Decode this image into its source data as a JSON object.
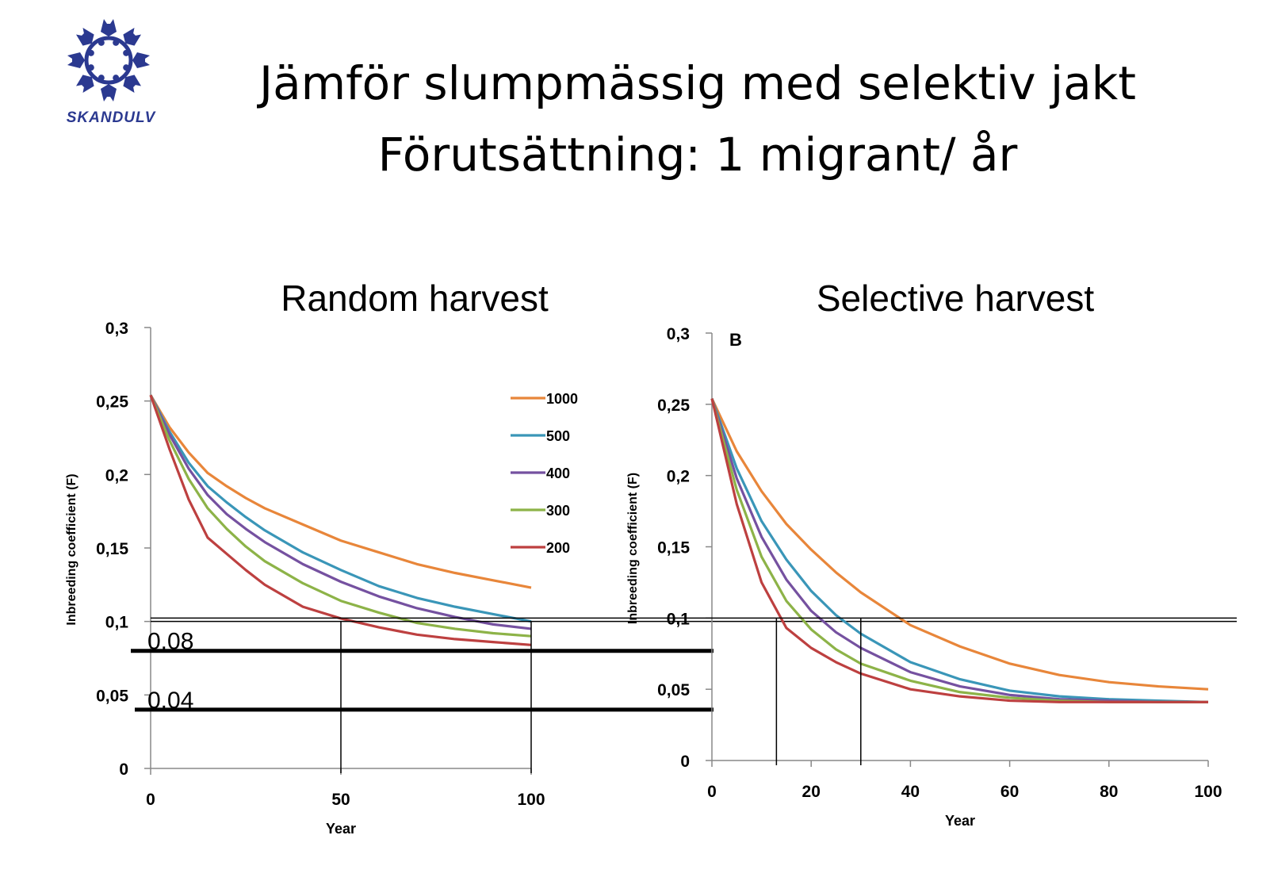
{
  "slide": {
    "title_line1": "Jämför slumpmässig med selektiv jakt",
    "title_line2": "Förutsättning: 1 migrant/ år",
    "logo_text": "SKANDULV",
    "logo_color": "#2b3990"
  },
  "chart_data": [
    {
      "type": "line",
      "title": "Random harvest",
      "xlabel": "Year",
      "ylabel": "Inbreeding coefficient (F)",
      "xlim": [
        0,
        100
      ],
      "ylim": [
        0,
        0.3
      ],
      "xticks": [
        0,
        50,
        100
      ],
      "xtick_labels": [
        "0",
        "50",
        "100"
      ],
      "yticks": [
        0,
        0.05,
        0.1,
        0.15,
        0.2,
        0.25,
        0.3
      ],
      "ytick_labels": [
        "0",
        "0,05",
        "0,1",
        "0,15",
        "0,2",
        "0,25",
        "0,3"
      ],
      "legend_position": "right",
      "x": [
        0,
        5,
        10,
        15,
        20,
        25,
        30,
        40,
        50,
        60,
        70,
        80,
        90,
        100
      ],
      "series": [
        {
          "name": "1000",
          "color": "#e8863a",
          "values": [
            0.254,
            0.232,
            0.215,
            0.201,
            0.192,
            0.184,
            0.177,
            0.166,
            0.155,
            0.147,
            0.139,
            0.133,
            0.128,
            0.123
          ]
        },
        {
          "name": "500",
          "color": "#3a96b8",
          "values": [
            0.254,
            0.229,
            0.208,
            0.192,
            0.181,
            0.171,
            0.162,
            0.147,
            0.135,
            0.124,
            0.116,
            0.11,
            0.105,
            0.1
          ]
        },
        {
          "name": "400",
          "color": "#7551a0",
          "values": [
            0.254,
            0.227,
            0.204,
            0.186,
            0.173,
            0.163,
            0.154,
            0.139,
            0.127,
            0.117,
            0.109,
            0.103,
            0.098,
            0.095
          ]
        },
        {
          "name": "300",
          "color": "#8db348",
          "values": [
            0.254,
            0.223,
            0.197,
            0.177,
            0.163,
            0.151,
            0.141,
            0.126,
            0.114,
            0.106,
            0.099,
            0.095,
            0.092,
            0.09
          ]
        },
        {
          "name": "200",
          "color": "#bd4040",
          "values": [
            0.254,
            0.217,
            0.183,
            0.157,
            0.146,
            0.135,
            0.125,
            0.11,
            0.102,
            0.096,
            0.091,
            0.088,
            0.086,
            0.084
          ]
        }
      ],
      "reference_lines": [
        {
          "value": 0.1,
          "style": "thin"
        },
        {
          "value": 0.08,
          "label": "0.08",
          "style": "thick"
        },
        {
          "value": 0.04,
          "label": "0.04",
          "style": "thick"
        }
      ],
      "vertical_markers": [
        50,
        100
      ]
    },
    {
      "type": "line",
      "title": "Selective harvest",
      "panel_label": "B",
      "xlabel": "Year",
      "ylabel": "Inbreeding coefficient (F)",
      "xlim": [
        0,
        100
      ],
      "ylim": [
        0,
        0.3
      ],
      "xticks": [
        0,
        20,
        40,
        60,
        80,
        100
      ],
      "xtick_labels": [
        "0",
        "20",
        "40",
        "60",
        "80",
        "100"
      ],
      "yticks": [
        0,
        0.05,
        0.1,
        0.15,
        0.2,
        0.25,
        0.3
      ],
      "ytick_labels": [
        "0",
        "0,05",
        "0,1",
        "0,15",
        "0,2",
        "0,25",
        "0,3"
      ],
      "x": [
        0,
        5,
        10,
        15,
        20,
        25,
        30,
        40,
        50,
        60,
        70,
        80,
        90,
        100
      ],
      "series": [
        {
          "name": "1000",
          "color": "#e8863a",
          "values": [
            0.254,
            0.217,
            0.189,
            0.166,
            0.148,
            0.132,
            0.118,
            0.095,
            0.08,
            0.068,
            0.06,
            0.055,
            0.052,
            0.05
          ]
        },
        {
          "name": "500",
          "color": "#3a96b8",
          "values": [
            0.254,
            0.205,
            0.168,
            0.141,
            0.119,
            0.102,
            0.089,
            0.069,
            0.057,
            0.049,
            0.045,
            0.043,
            0.042,
            0.041
          ]
        },
        {
          "name": "400",
          "color": "#7551a0",
          "values": [
            0.254,
            0.198,
            0.157,
            0.127,
            0.105,
            0.09,
            0.079,
            0.062,
            0.052,
            0.046,
            0.043,
            0.042,
            0.041,
            0.041
          ]
        },
        {
          "name": "300",
          "color": "#8db348",
          "values": [
            0.254,
            0.19,
            0.143,
            0.112,
            0.092,
            0.078,
            0.068,
            0.056,
            0.048,
            0.044,
            0.042,
            0.041,
            0.041,
            0.041
          ]
        },
        {
          "name": "200",
          "color": "#bd4040",
          "values": [
            0.254,
            0.18,
            0.125,
            0.093,
            0.079,
            0.069,
            0.061,
            0.05,
            0.045,
            0.042,
            0.041,
            0.041,
            0.041,
            0.041
          ]
        }
      ],
      "reference_lines": [
        {
          "value": 0.1,
          "style": "thin"
        },
        {
          "value": 0.04,
          "style": "thick"
        }
      ],
      "vertical_markers": [
        13,
        30
      ]
    }
  ]
}
